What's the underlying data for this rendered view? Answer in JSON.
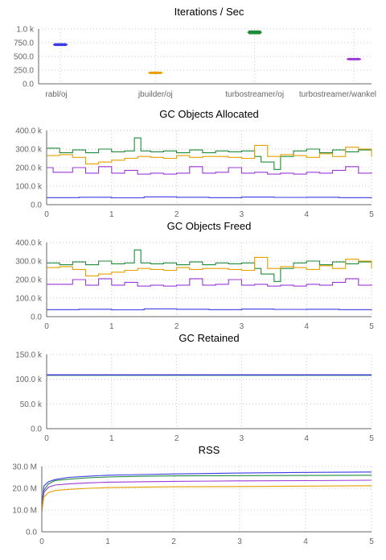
{
  "colors": {
    "blue": "#3a3ae6",
    "orange": "#e69f00",
    "green": "#1f8a3a",
    "purple": "#9b38d6"
  },
  "chart_data": [
    {
      "type": "scatter",
      "title": "Iterations / Sec",
      "categories": [
        "rabl/oj",
        "jbuilder/oj",
        "turbostreamer/oj",
        "turbostreamer/wankel"
      ],
      "values": [
        715,
        200,
        940,
        450
      ],
      "spread": [
        25,
        10,
        35,
        8
      ],
      "colors": [
        "#3a3ae6",
        "#e69f00",
        "#1f8a3a",
        "#9b38d6"
      ],
      "ylim": [
        0,
        1000
      ],
      "yticks": [
        "0.0",
        "250.0",
        "500.0",
        "750.0",
        "1.0 k"
      ],
      "grid": true
    },
    {
      "type": "line",
      "title": "GC Objects Allocated",
      "xlim": [
        0,
        5
      ],
      "ylim": [
        0,
        400000
      ],
      "xticks": [
        "0",
        "1",
        "2",
        "3",
        "4",
        "5"
      ],
      "yticks": [
        "0.0",
        "100.0 k",
        "200.0 k",
        "300.0 k",
        "400.0 k"
      ],
      "grid": true,
      "series": [
        {
          "color": "#1f8a3a",
          "x": [
            0,
            0.2,
            0.4,
            0.6,
            0.8,
            1.0,
            1.2,
            1.35,
            1.45,
            1.6,
            1.8,
            2.0,
            2.2,
            2.4,
            2.6,
            2.8,
            3.0,
            3.2,
            3.3,
            3.5,
            3.6,
            3.8,
            4.0,
            4.2,
            4.4,
            4.6,
            4.8,
            5.0
          ],
          "y": [
            305000,
            280000,
            295000,
            280000,
            300000,
            285000,
            290000,
            360000,
            290000,
            285000,
            290000,
            280000,
            295000,
            280000,
            290000,
            285000,
            290000,
            260000,
            230000,
            190000,
            260000,
            290000,
            300000,
            280000,
            295000,
            285000,
            295000,
            300000
          ]
        },
        {
          "color": "#e69f00",
          "x": [
            0,
            0.2,
            0.4,
            0.6,
            0.8,
            1.0,
            1.2,
            1.4,
            1.6,
            1.8,
            2.0,
            2.2,
            2.4,
            2.6,
            2.8,
            3.0,
            3.2,
            3.4,
            3.6,
            3.8,
            4.0,
            4.2,
            4.4,
            4.6,
            4.8,
            5.0
          ],
          "y": [
            265000,
            270000,
            255000,
            220000,
            230000,
            240000,
            250000,
            260000,
            255000,
            250000,
            265000,
            255000,
            260000,
            260000,
            255000,
            250000,
            320000,
            260000,
            270000,
            265000,
            255000,
            275000,
            260000,
            310000,
            300000,
            260000
          ]
        },
        {
          "color": "#9b38d6",
          "x": [
            0,
            0.1,
            0.2,
            0.4,
            0.6,
            0.8,
            1.0,
            1.2,
            1.4,
            1.6,
            1.8,
            2.0,
            2.2,
            2.4,
            2.6,
            2.8,
            3.0,
            3.2,
            3.4,
            3.6,
            3.8,
            4.0,
            4.2,
            4.4,
            4.6,
            4.8,
            5.0
          ],
          "y": [
            200000,
            175000,
            175000,
            200000,
            170000,
            205000,
            170000,
            185000,
            165000,
            170000,
            165000,
            170000,
            205000,
            170000,
            175000,
            200000,
            170000,
            175000,
            165000,
            170000,
            165000,
            175000,
            170000,
            185000,
            205000,
            170000,
            175000
          ]
        },
        {
          "color": "#3a3ae6",
          "x": [
            0,
            0.5,
            1.0,
            1.5,
            2.0,
            2.5,
            3.0,
            3.5,
            4.0,
            4.5,
            5.0
          ],
          "y": [
            38000,
            40000,
            37000,
            42000,
            40000,
            38000,
            41000,
            39000,
            40000,
            38000,
            40000
          ]
        }
      ]
    },
    {
      "type": "line",
      "title": "GC Objects Freed",
      "xlim": [
        0,
        5
      ],
      "ylim": [
        0,
        400000
      ],
      "xticks": [
        "0",
        "1",
        "2",
        "3",
        "4",
        "5"
      ],
      "yticks": [
        "0.0",
        "100.0 k",
        "200.0 k",
        "300.0 k",
        "400.0 k"
      ],
      "grid": true,
      "series": [
        {
          "color": "#1f8a3a",
          "x": [
            0,
            0.2,
            0.4,
            0.6,
            0.8,
            1.0,
            1.2,
            1.35,
            1.45,
            1.6,
            1.8,
            2.0,
            2.2,
            2.4,
            2.6,
            2.8,
            3.0,
            3.2,
            3.3,
            3.5,
            3.6,
            3.8,
            4.0,
            4.2,
            4.4,
            4.6,
            4.8,
            5.0
          ],
          "y": [
            290000,
            280000,
            295000,
            280000,
            300000,
            285000,
            290000,
            360000,
            290000,
            285000,
            290000,
            280000,
            295000,
            280000,
            290000,
            285000,
            290000,
            260000,
            230000,
            190000,
            260000,
            290000,
            300000,
            280000,
            295000,
            285000,
            295000,
            300000
          ]
        },
        {
          "color": "#e69f00",
          "x": [
            0,
            0.2,
            0.4,
            0.6,
            0.8,
            1.0,
            1.2,
            1.4,
            1.6,
            1.8,
            2.0,
            2.2,
            2.4,
            2.6,
            2.8,
            3.0,
            3.2,
            3.4,
            3.6,
            3.8,
            4.0,
            4.2,
            4.4,
            4.6,
            4.8,
            5.0
          ],
          "y": [
            265000,
            270000,
            255000,
            220000,
            230000,
            240000,
            250000,
            260000,
            255000,
            250000,
            265000,
            255000,
            260000,
            260000,
            255000,
            250000,
            320000,
            260000,
            270000,
            265000,
            255000,
            275000,
            260000,
            310000,
            300000,
            260000
          ]
        },
        {
          "color": "#9b38d6",
          "x": [
            0,
            0.1,
            0.2,
            0.4,
            0.6,
            0.8,
            1.0,
            1.2,
            1.4,
            1.6,
            1.8,
            2.0,
            2.2,
            2.4,
            2.6,
            2.8,
            3.0,
            3.2,
            3.4,
            3.6,
            3.8,
            4.0,
            4.2,
            4.4,
            4.6,
            4.8,
            5.0
          ],
          "y": [
            175000,
            175000,
            175000,
            200000,
            170000,
            205000,
            170000,
            185000,
            165000,
            170000,
            165000,
            170000,
            205000,
            170000,
            175000,
            200000,
            170000,
            175000,
            165000,
            170000,
            165000,
            175000,
            170000,
            185000,
            205000,
            170000,
            175000
          ]
        },
        {
          "color": "#3a3ae6",
          "x": [
            0,
            0.5,
            1.0,
            1.5,
            2.0,
            2.5,
            3.0,
            3.5,
            4.0,
            4.5,
            5.0
          ],
          "y": [
            38000,
            40000,
            37000,
            42000,
            40000,
            38000,
            41000,
            39000,
            40000,
            38000,
            40000
          ]
        }
      ]
    },
    {
      "type": "line",
      "title": "GC Retained",
      "xlim": [
        0,
        5
      ],
      "ylim": [
        0,
        150000
      ],
      "xticks": [
        "0",
        "1",
        "2",
        "3",
        "4",
        "5"
      ],
      "yticks": [
        "0.0",
        "50.0 k",
        "100.0 k",
        "150.0 k"
      ],
      "grid": true,
      "series": [
        {
          "color": "#9b38d6",
          "x": [
            0,
            1,
            2,
            3,
            4,
            5
          ],
          "y": [
            109000,
            109000,
            109000,
            109000,
            109000,
            109000
          ]
        },
        {
          "color": "#e69f00",
          "x": [
            0,
            1,
            2,
            3,
            4,
            5
          ],
          "y": [
            108500,
            108500,
            108500,
            108500,
            108500,
            108500
          ]
        },
        {
          "color": "#1f8a3a",
          "x": [
            0,
            1,
            2,
            3,
            4,
            5
          ],
          "y": [
            108000,
            108000,
            108000,
            108000,
            108000,
            108000
          ]
        },
        {
          "color": "#3a3ae6",
          "x": [
            0,
            1,
            2,
            3,
            4,
            5
          ],
          "y": [
            108800,
            108800,
            108800,
            108800,
            108800,
            108800
          ]
        }
      ]
    },
    {
      "type": "line",
      "title": "RSS",
      "xlim": [
        0,
        5
      ],
      "ylim": [
        0,
        30000000
      ],
      "xticks": [
        "0",
        "1",
        "2",
        "3",
        "4",
        "5"
      ],
      "yticks": [
        "0.0",
        "10.0 M",
        "20.0 M",
        "30.0 M"
      ],
      "grid": true,
      "series": [
        {
          "color": "#3a3ae6",
          "x": [
            0,
            0.03,
            0.1,
            0.2,
            0.4,
            0.7,
            1.0,
            1.5,
            2.0,
            3.0,
            4.0,
            5.0
          ],
          "y": [
            12000000,
            21000000,
            23000000,
            24000000,
            25000000,
            25500000,
            26000000,
            26300000,
            26600000,
            27000000,
            27300000,
            27500000
          ]
        },
        {
          "color": "#1f8a3a",
          "x": [
            0,
            0.03,
            0.1,
            0.2,
            0.4,
            0.7,
            1.0,
            1.5,
            2.0,
            3.0,
            4.0,
            5.0
          ],
          "y": [
            12000000,
            19000000,
            22000000,
            23500000,
            24200000,
            24800000,
            25200000,
            25500000,
            25700000,
            25800000,
            25900000,
            26000000
          ]
        },
        {
          "color": "#9b38d6",
          "x": [
            0,
            0.03,
            0.1,
            0.2,
            0.4,
            0.7,
            1.0,
            1.5,
            2.0,
            3.0,
            4.0,
            5.0
          ],
          "y": [
            10000000,
            18000000,
            20500000,
            21500000,
            22000000,
            22500000,
            22800000,
            23000000,
            23200000,
            23400000,
            23500000,
            23700000
          ]
        },
        {
          "color": "#e69f00",
          "x": [
            0,
            0.03,
            0.1,
            0.2,
            0.4,
            0.7,
            1.0,
            1.5,
            2.0,
            3.0,
            4.0,
            5.0
          ],
          "y": [
            9000000,
            16000000,
            18000000,
            19000000,
            19500000,
            20000000,
            20300000,
            20500000,
            20700000,
            20800000,
            21000000,
            21200000
          ]
        }
      ]
    }
  ]
}
